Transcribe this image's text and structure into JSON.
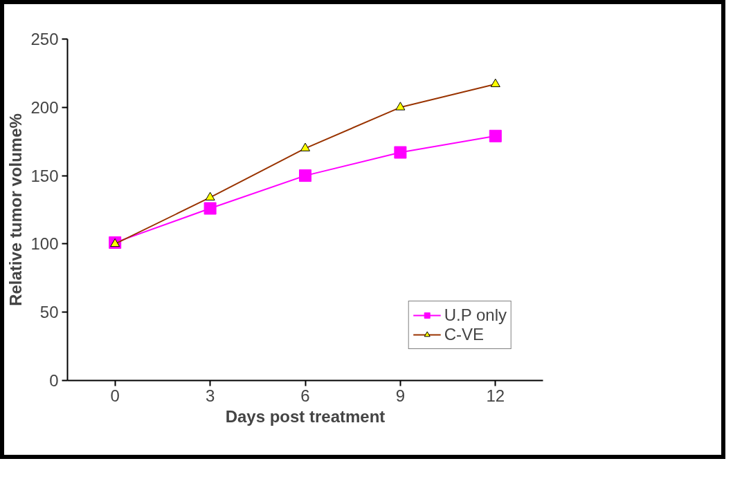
{
  "chart_data": {
    "type": "line",
    "xlabel": "Days post treatment",
    "ylabel": "Relative tumor volume%",
    "categories": [
      "0",
      "3",
      "6",
      "9",
      "12"
    ],
    "ylim": [
      0,
      250
    ],
    "yticks": [
      0,
      50,
      100,
      150,
      200,
      250
    ],
    "grid": false,
    "legend": "bottom right",
    "series": [
      {
        "name": "U.P only",
        "color": "#ff00ff",
        "marker": "square",
        "values": [
          101,
          126,
          150,
          167,
          179
        ]
      },
      {
        "name": "C-VE",
        "color": "#993300",
        "marker": "triangle",
        "values": [
          100,
          134,
          170,
          200,
          217
        ]
      }
    ]
  }
}
